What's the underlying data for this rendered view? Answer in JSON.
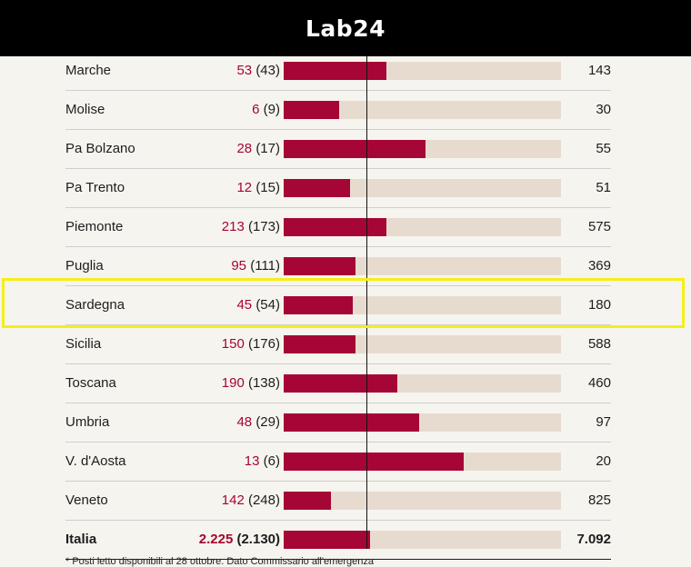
{
  "header": {
    "logo": "Lab24"
  },
  "chart_data": {
    "type": "bar",
    "categories": [
      "Marche",
      "Molise",
      "Pa Bolzano",
      "Pa Trento",
      "Piemonte",
      "Puglia",
      "Sardegna",
      "Sicilia",
      "Toscana",
      "Umbria",
      "V. d'Aosta",
      "Veneto",
      "Italia"
    ],
    "current": [
      "53",
      "6",
      "28",
      "12",
      "213",
      "95",
      "45",
      "150",
      "190",
      "48",
      "13",
      "142",
      "2.225"
    ],
    "previous": [
      "(43)",
      "(9)",
      "(17)",
      "(15)",
      "(173)",
      "(111)",
      "(54)",
      "(176)",
      "(138)",
      "(29)",
      "(6)",
      "(248)",
      "(2.130)"
    ],
    "totals": [
      "143",
      "30",
      "55",
      "51",
      "575",
      "369",
      "180",
      "588",
      "460",
      "97",
      "20",
      "825",
      "7.092"
    ],
    "occupancy_fraction": [
      0.37,
      0.2,
      0.51,
      0.24,
      0.37,
      0.26,
      0.25,
      0.26,
      0.41,
      0.49,
      0.65,
      0.17,
      0.31
    ],
    "footnote": "* Posti letto disponibili al 28 ottobre. Dato Commissario all'emergenza",
    "colors": {
      "current": "#a60635",
      "track": "#e7dbd0",
      "highlight": "#f5ef18"
    },
    "highlighted_row": "Sardegna"
  }
}
